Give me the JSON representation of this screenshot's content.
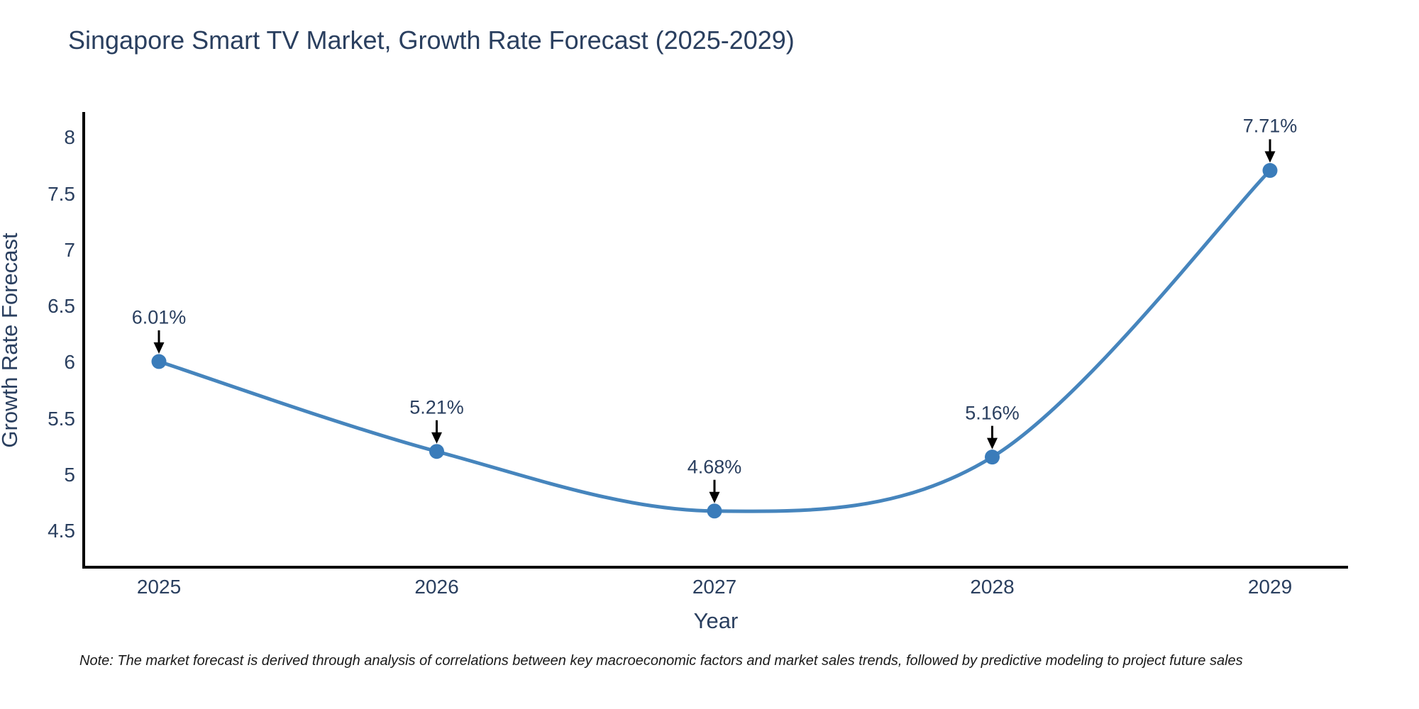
{
  "note": "Note: The market forecast is derived through analysis of correlations between key macroeconomic factors and market sales trends, followed by predictive modeling to project future sales",
  "chart_data": {
    "type": "line",
    "title": "Singapore Smart TV Market, Growth Rate Forecast (2025-2029)",
    "x": [
      "2025",
      "2026",
      "2027",
      "2028",
      "2029"
    ],
    "values": [
      6.01,
      5.21,
      4.68,
      5.16,
      7.71
    ],
    "point_labels": [
      "6.01%",
      "5.21%",
      "4.68%",
      "5.16%",
      "7.71%"
    ],
    "xlabel": "Year",
    "ylabel": "Growth Rate Forecast",
    "ylim": [
      4.18,
      8.23
    ],
    "yticks": [
      4.5,
      5,
      5.5,
      6,
      6.5,
      7,
      7.5,
      8
    ],
    "line_shape": "spline",
    "grid": false,
    "legend": "none",
    "colors": {
      "line": "#4685bd",
      "marker": "#3a7cba",
      "axis": "#000000",
      "text": "#2a3f5f",
      "arrow": "#000000",
      "note": "#1a1a1a",
      "background": "#ffffff"
    }
  }
}
